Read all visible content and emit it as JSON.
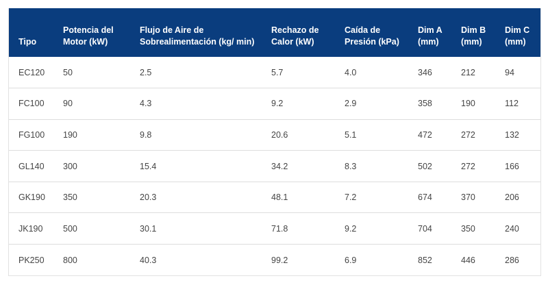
{
  "table": {
    "headers": [
      "Tipo",
      "Potencia del Motor (kW)",
      "Flujo de Aire de Sobrealimentación (kg/ min)",
      "Rechazo de Calor (kW)",
      "Caída de Presión (kPa)",
      "Dim A (mm)",
      "Dim B (mm)",
      "Dim C (mm)"
    ],
    "rows": [
      [
        "EC120",
        "50",
        "2.5",
        "5.7",
        "4.0",
        "346",
        "212",
        "94"
      ],
      [
        "FC100",
        "90",
        "4.3",
        "9.2",
        "2.9",
        "358",
        "190",
        "112"
      ],
      [
        "FG100",
        "190",
        "9.8",
        "20.6",
        "5.1",
        "472",
        "272",
        "132"
      ],
      [
        "GL140",
        "300",
        "15.4",
        "34.2",
        "8.3",
        "502",
        "272",
        "166"
      ],
      [
        "GK190",
        "350",
        "20.3",
        "48.1",
        "7.2",
        "674",
        "370",
        "206"
      ],
      [
        "JK190",
        "500",
        "30.1",
        "71.8",
        "9.2",
        "704",
        "350",
        "240"
      ],
      [
        "PK250",
        "800",
        "40.3",
        "99.2",
        "6.9",
        "852",
        "446",
        "286"
      ]
    ]
  },
  "colors": {
    "header_bg": "#0a3d7e",
    "header_text": "#ffffff",
    "cell_text": "#444444",
    "row_border": "#dddddd"
  }
}
